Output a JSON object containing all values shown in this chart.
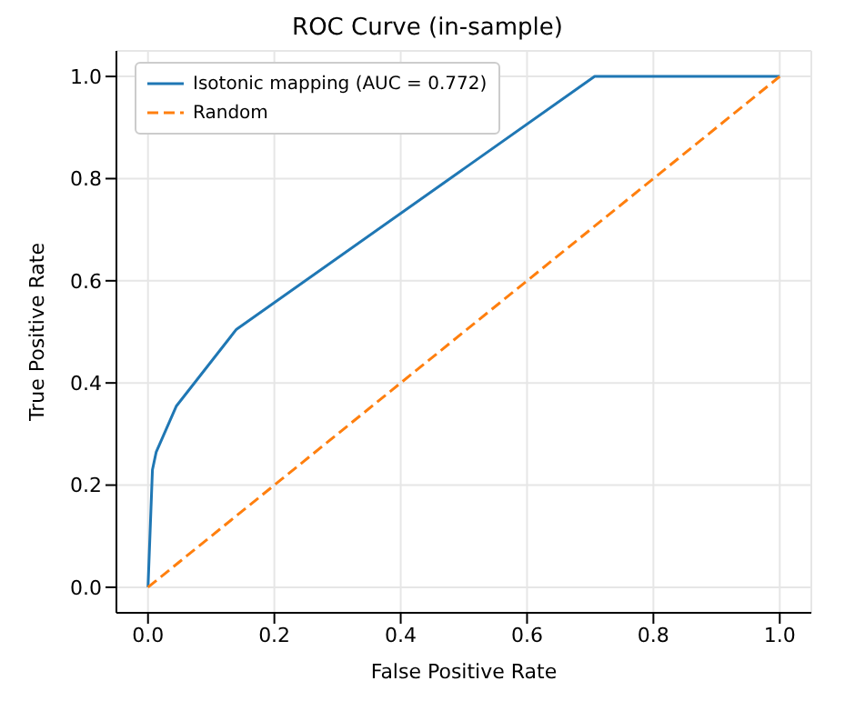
{
  "chart_data": {
    "type": "line",
    "title": "ROC Curve (in-sample)",
    "xlabel": "False Positive Rate",
    "ylabel": "True Positive Rate",
    "series": [
      {
        "name": "Isotonic mapping (AUC = 0.772)",
        "color": "#1f77b4",
        "x": [
          0,
          0.007,
          0.013,
          0.045,
          0.14,
          0.707,
          1
        ],
        "values": [
          0,
          0.23,
          0.265,
          0.355,
          0.505,
          1,
          1
        ],
        "line_style": "solid"
      },
      {
        "name": "Random",
        "color": "#ff7f0e",
        "x": [
          0,
          1
        ],
        "values": [
          0,
          1
        ],
        "line_style": "dashed"
      }
    ],
    "xlim": [
      -0.05,
      1.05
    ],
    "xticks": [
      {
        "value": 0,
        "label": "0.0"
      },
      {
        "value": 0.2,
        "label": "0.2"
      },
      {
        "value": 0.4,
        "label": "0.4"
      },
      {
        "value": 0.6,
        "label": "0.6"
      },
      {
        "value": 0.8,
        "label": "0.8"
      },
      {
        "value": 1,
        "label": "1.0"
      }
    ],
    "ylim": [
      -0.05,
      1.05
    ],
    "yticks": [
      {
        "value": 0,
        "label": "0.0"
      },
      {
        "value": 0.2,
        "label": "0.2"
      },
      {
        "value": 0.4,
        "label": "0.4"
      },
      {
        "value": 0.6,
        "label": "0.6"
      },
      {
        "value": 0.8,
        "label": "0.8"
      },
      {
        "value": 1,
        "label": "1.0"
      }
    ],
    "grid": true,
    "legend": "top left",
    "marker": "none"
  }
}
